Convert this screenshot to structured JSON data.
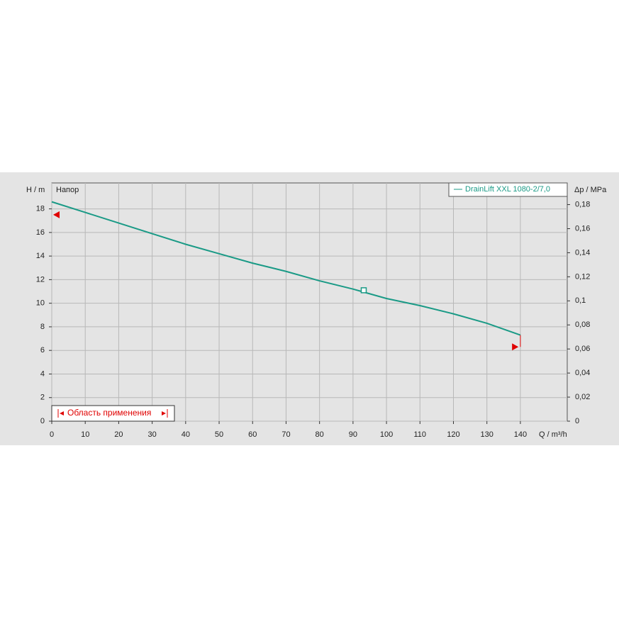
{
  "chart_data": {
    "type": "line",
    "y_label": "H / m",
    "y_title": "Напор",
    "y2_label": "Δp / MPa",
    "x_label": "Q / m³/h",
    "x": [
      0,
      10,
      20,
      30,
      40,
      50,
      60,
      70,
      80,
      90,
      100,
      110,
      120,
      130,
      140
    ],
    "series": [
      {
        "name": "DrainLift XXL 1080-2/7,0",
        "color": "#1a9a86",
        "values": [
          18.6,
          17.7,
          16.8,
          15.9,
          15.0,
          14.2,
          13.4,
          12.7,
          11.9,
          11.2,
          10.4,
          9.8,
          9.1,
          8.3,
          7.3
        ]
      }
    ],
    "operating_point": {
      "x": 93.2,
      "y": 11.1
    },
    "range_markers": {
      "color": "#e00000",
      "start": {
        "x": 0,
        "y": 17.5
      },
      "end": {
        "x": 139,
        "y": 6.3
      }
    },
    "range_label": "Область применения",
    "xlim": [
      0,
      154
    ],
    "xticks": [
      0,
      10,
      20,
      30,
      40,
      50,
      60,
      70,
      80,
      90,
      100,
      110,
      120,
      130,
      140
    ],
    "ylim": [
      0,
      20.2
    ],
    "yticks": [
      0,
      2,
      4,
      6,
      8,
      10,
      12,
      14,
      16,
      18
    ],
    "y2lim": [
      0,
      0.198
    ],
    "y2ticks": [
      0,
      {
        "value": 0.02,
        "label": "0,02"
      },
      {
        "value": 0.04,
        "label": "0,04"
      },
      {
        "value": 0.06,
        "label": "0,06"
      },
      {
        "value": 0.08,
        "label": "0,08"
      },
      {
        "value": 0.1,
        "label": "0,1"
      },
      {
        "value": 0.12,
        "label": "0,12"
      },
      {
        "value": 0.14,
        "label": "0,14"
      },
      {
        "value": 0.16,
        "label": "0,16"
      },
      {
        "value": 0.18,
        "label": "0,18"
      }
    ],
    "grid": true,
    "legend": "top-right"
  }
}
